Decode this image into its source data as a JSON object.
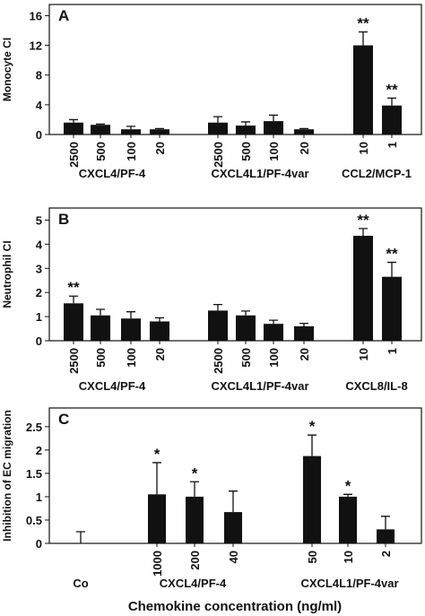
{
  "chart_data": [
    {
      "type": "bar",
      "panel_label": "A",
      "ylabel": "Monocyte CI",
      "ylim": [
        0,
        17.5
      ],
      "yticks": [
        0,
        4,
        8,
        12,
        16
      ],
      "color": "#111111",
      "groups": [
        {
          "name": "CXCL4/PF-4",
          "categories": [
            "2500",
            "500",
            "100",
            "20"
          ],
          "values": [
            1.6,
            1.3,
            0.7,
            0.7
          ],
          "errors": [
            0.4,
            0.1,
            0.4,
            0.1
          ],
          "significance": [
            null,
            null,
            null,
            null
          ]
        },
        {
          "name": "CXCL4L1/PF-4var",
          "categories": [
            "2500",
            "500",
            "100",
            "20"
          ],
          "values": [
            1.6,
            1.2,
            1.8,
            0.7
          ],
          "errors": [
            0.8,
            0.5,
            0.8,
            0.1
          ],
          "significance": [
            null,
            null,
            null,
            null
          ]
        },
        {
          "name": "CCL2/MCP-1",
          "categories": [
            "10",
            "1"
          ],
          "values": [
            12.0,
            3.9
          ],
          "errors": [
            1.8,
            1.0
          ],
          "significance": [
            "**",
            "**"
          ]
        }
      ]
    },
    {
      "type": "bar",
      "panel_label": "B",
      "ylabel": "Neutrophil CI",
      "ylim": [
        0,
        5.5
      ],
      "yticks": [
        0,
        1,
        2,
        3,
        4,
        5
      ],
      "color": "#111111",
      "groups": [
        {
          "name": "CXCL4/PF-4",
          "categories": [
            "2500",
            "500",
            "100",
            "20"
          ],
          "values": [
            1.55,
            1.05,
            0.92,
            0.8
          ],
          "errors": [
            0.3,
            0.25,
            0.28,
            0.15
          ],
          "significance": [
            "**",
            null,
            null,
            null
          ]
        },
        {
          "name": "CXCL4L1/PF-4var",
          "categories": [
            "2500",
            "500",
            "100",
            "20"
          ],
          "values": [
            1.25,
            1.05,
            0.7,
            0.6
          ],
          "errors": [
            0.25,
            0.18,
            0.15,
            0.12
          ],
          "significance": [
            null,
            null,
            null,
            null
          ]
        },
        {
          "name": "CXCL8/IL-8",
          "categories": [
            "10",
            "1"
          ],
          "values": [
            4.35,
            2.65
          ],
          "errors": [
            0.3,
            0.6
          ],
          "significance": [
            "**",
            "**"
          ]
        }
      ]
    },
    {
      "type": "bar",
      "panel_label": "C",
      "ylabel": "Inhibition of EC migration",
      "xlabel": "Chemokine concentration (ng/ml)",
      "ylim": [
        0,
        2.9
      ],
      "yticks": [
        0,
        0.5,
        1,
        1.5,
        2,
        2.5
      ],
      "color": "#111111",
      "groups": [
        {
          "name": "Co",
          "categories": [
            null
          ],
          "values": [
            0
          ],
          "errors": [
            0.25
          ],
          "significance": [
            null
          ]
        },
        {
          "name": "CXCL4/PF-4",
          "categories": [
            "1000",
            "200",
            "40"
          ],
          "values": [
            1.05,
            1.0,
            0.67
          ],
          "errors": [
            0.68,
            0.32,
            0.45
          ],
          "significance": [
            "*",
            "*",
            null
          ]
        },
        {
          "name": "CXCL4L1/PF-4var",
          "categories": [
            "50",
            "10",
            "2"
          ],
          "values": [
            1.87,
            1.0,
            0.3
          ],
          "errors": [
            0.45,
            0.05,
            0.28
          ],
          "significance": [
            "*",
            "*",
            null
          ]
        }
      ]
    }
  ]
}
